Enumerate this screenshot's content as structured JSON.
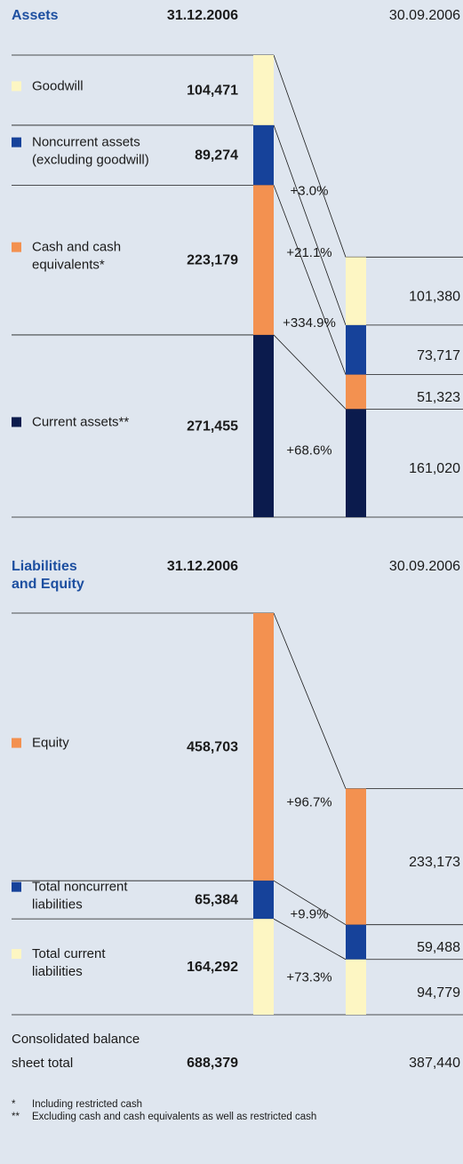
{
  "colors": {
    "light_yellow": "#fdf6c3",
    "blue": "#16429a",
    "orange": "#f39150",
    "navy": "#0b1b4d"
  },
  "chart_data": [
    {
      "type": "bar",
      "title": "Assets",
      "categories": [
        "31.12.2006",
        "30.09.2006"
      ],
      "stacked": true,
      "series": [
        {
          "name": "Goodwill",
          "color": "light_yellow",
          "values": [
            104471,
            101380
          ],
          "change": "+3.0%"
        },
        {
          "name": "Noncurrent assets (excluding goodwill)",
          "label_lines": [
            "Noncurrent assets",
            "(excluding goodwill)"
          ],
          "color": "blue",
          "values": [
            89274,
            73717
          ],
          "change": "+21.1%"
        },
        {
          "name": "Cash and cash equivalents*",
          "label_lines": [
            "Cash and cash",
            "equivalents*"
          ],
          "color": "orange",
          "values": [
            223179,
            51323
          ],
          "change": "+334.9%"
        },
        {
          "name": "Current assets**",
          "color": "navy",
          "values": [
            271455,
            161020
          ],
          "change": "+68.6%"
        }
      ]
    },
    {
      "type": "bar",
      "title": "Liabilities and Equity",
      "title_lines": [
        "Liabilities",
        "and Equity"
      ],
      "categories": [
        "31.12.2006",
        "30.09.2006"
      ],
      "stacked": true,
      "series": [
        {
          "name": "Equity",
          "color": "orange",
          "values": [
            458703,
            233173
          ],
          "change": "+96.7%"
        },
        {
          "name": "Total noncurrent liabilities",
          "label_lines": [
            "Total noncurrent",
            "liabilities"
          ],
          "color": "blue",
          "values": [
            65384,
            59488
          ],
          "change": "+9.9%"
        },
        {
          "name": "Total current liabilities",
          "label_lines": [
            "Total current",
            "liabilities"
          ],
          "color": "light_yellow",
          "values": [
            164292,
            94779
          ],
          "change": "+73.3%"
        }
      ]
    }
  ],
  "total": {
    "label_lines": [
      "Consolidated balance",
      "sheet total"
    ],
    "values": [
      "688,379",
      "387,440"
    ]
  },
  "footnotes": [
    {
      "mark": "*",
      "text": "Including restricted cash"
    },
    {
      "mark": "**",
      "text": "Excluding cash and cash equivalents as well as restricted cash"
    }
  ]
}
